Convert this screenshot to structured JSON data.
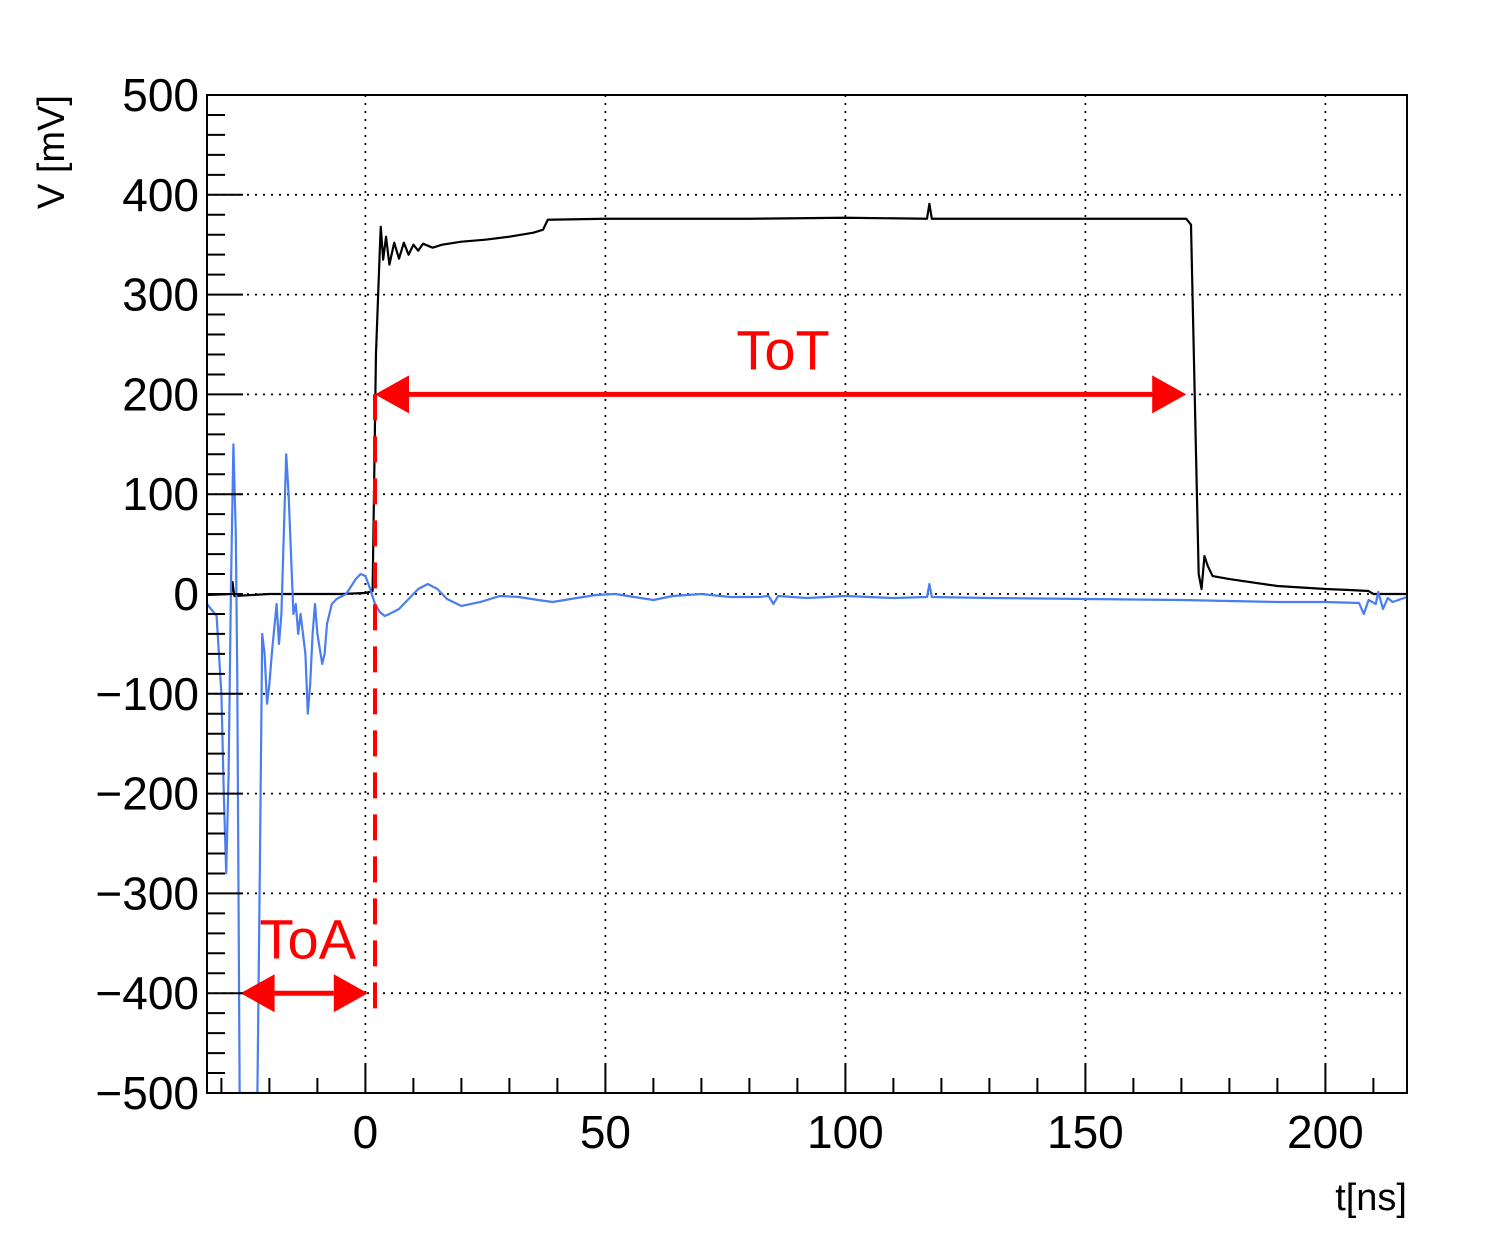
{
  "chart_data": {
    "type": "line",
    "xlabel": "t[ns]",
    "ylabel": "V [mV]",
    "xlim": [
      -33,
      217
    ],
    "ylim": [
      -500,
      500
    ],
    "x_ticks": [
      0,
      50,
      100,
      150,
      200
    ],
    "x_tick_labels": [
      "0",
      "50",
      "100",
      "150",
      "200"
    ],
    "y_ticks": [
      -500,
      -400,
      -300,
      -200,
      -100,
      0,
      100,
      200,
      300,
      400,
      500
    ],
    "y_tick_labels": [
      "−500",
      "−400",
      "−300",
      "−200",
      "−100",
      "0",
      "100",
      "200",
      "300",
      "400",
      "500"
    ],
    "grid": true,
    "series": [
      {
        "color": "#000000",
        "points": [
          [
            -33,
            -1
          ],
          [
            -28,
            0
          ],
          [
            -27.7,
            12
          ],
          [
            -27.3,
            -2
          ],
          [
            -20,
            0
          ],
          [
            -10,
            0
          ],
          [
            -5,
            0
          ],
          [
            0,
            1
          ],
          [
            1.5,
            3
          ],
          [
            2.2,
            240
          ],
          [
            3.0,
            345
          ],
          [
            3.2,
            368
          ],
          [
            3.7,
            335
          ],
          [
            4.3,
            358
          ],
          [
            5,
            330
          ],
          [
            6,
            352
          ],
          [
            7,
            336
          ],
          [
            8,
            352
          ],
          [
            9,
            340
          ],
          [
            10,
            350
          ],
          [
            11,
            344
          ],
          [
            12,
            351
          ],
          [
            14,
            347
          ],
          [
            16,
            350
          ],
          [
            20,
            353
          ],
          [
            25,
            355
          ],
          [
            30,
            358
          ],
          [
            35,
            362
          ],
          [
            37,
            365
          ],
          [
            38,
            375
          ],
          [
            50,
            376
          ],
          [
            80,
            376
          ],
          [
            100,
            377
          ],
          [
            117,
            376
          ],
          [
            117.5,
            391
          ],
          [
            118,
            376
          ],
          [
            140,
            376
          ],
          [
            171,
            376
          ],
          [
            172,
            370
          ],
          [
            173,
            150
          ],
          [
            173.6,
            20
          ],
          [
            174.2,
            5
          ],
          [
            174.8,
            38
          ],
          [
            175.5,
            28
          ],
          [
            176.5,
            18
          ],
          [
            180,
            15
          ],
          [
            190,
            8
          ],
          [
            200,
            5
          ],
          [
            205,
            4
          ],
          [
            209,
            3
          ],
          [
            210,
            0
          ],
          [
            217,
            0
          ]
        ]
      },
      {
        "color": "#4a7ef0",
        "points": [
          [
            -33,
            -10
          ],
          [
            -31,
            -22
          ],
          [
            -30,
            -100
          ],
          [
            -29.5,
            -200
          ],
          [
            -29,
            -280
          ],
          [
            -28.5,
            -180
          ],
          [
            -28,
            10
          ],
          [
            -27.5,
            150
          ],
          [
            -27,
            60
          ],
          [
            -26.7,
            -80
          ],
          [
            -26.2,
            -500
          ],
          [
            -22.5,
            -500
          ],
          [
            -22,
            -280
          ],
          [
            -21.5,
            -40
          ],
          [
            -21,
            -60
          ],
          [
            -20.5,
            -110
          ],
          [
            -20,
            -90
          ],
          [
            -19.5,
            -60
          ],
          [
            -18.5,
            -10
          ],
          [
            -18,
            -50
          ],
          [
            -17.5,
            -20
          ],
          [
            -17,
            60
          ],
          [
            -16.5,
            140
          ],
          [
            -16,
            100
          ],
          [
            -15.5,
            40
          ],
          [
            -15,
            -20
          ],
          [
            -14.5,
            -10
          ],
          [
            -14,
            -40
          ],
          [
            -13.5,
            -20
          ],
          [
            -12.5,
            -60
          ],
          [
            -12,
            -120
          ],
          [
            -11.5,
            -90
          ],
          [
            -11,
            -40
          ],
          [
            -10.5,
            -10
          ],
          [
            -10,
            -40
          ],
          [
            -9.5,
            -55
          ],
          [
            -9,
            -70
          ],
          [
            -8.5,
            -60
          ],
          [
            -8,
            -30
          ],
          [
            -7,
            -10
          ],
          [
            -6,
            -5
          ],
          [
            -4,
            0
          ],
          [
            -2,
            15
          ],
          [
            -1,
            20
          ],
          [
            0,
            18
          ],
          [
            1,
            5
          ],
          [
            2,
            -10
          ],
          [
            3,
            -18
          ],
          [
            4,
            -22
          ],
          [
            5,
            -20
          ],
          [
            7,
            -15
          ],
          [
            9,
            -5
          ],
          [
            11,
            5
          ],
          [
            13,
            10
          ],
          [
            15,
            5
          ],
          [
            17,
            -5
          ],
          [
            20,
            -12
          ],
          [
            24,
            -8
          ],
          [
            28,
            -2
          ],
          [
            32,
            -3
          ],
          [
            36,
            -6
          ],
          [
            39,
            -8
          ],
          [
            44,
            -4
          ],
          [
            48,
            -1
          ],
          [
            52,
            0
          ],
          [
            56,
            -3
          ],
          [
            60,
            -6
          ],
          [
            64,
            -2
          ],
          [
            70,
            0
          ],
          [
            76,
            -3
          ],
          [
            82,
            -3
          ],
          [
            84,
            -2
          ],
          [
            85,
            -10
          ],
          [
            86,
            -2
          ],
          [
            92,
            -4
          ],
          [
            100,
            -2
          ],
          [
            110,
            -4
          ],
          [
            117,
            -3
          ],
          [
            117.5,
            10
          ],
          [
            118,
            -3
          ],
          [
            130,
            -4
          ],
          [
            150,
            -5
          ],
          [
            170,
            -6
          ],
          [
            180,
            -7
          ],
          [
            190,
            -8
          ],
          [
            200,
            -8
          ],
          [
            207,
            -9
          ],
          [
            208,
            -20
          ],
          [
            209,
            -6
          ],
          [
            210.5,
            -10
          ],
          [
            211,
            2
          ],
          [
            212,
            -15
          ],
          [
            213,
            -4
          ],
          [
            214,
            -8
          ],
          [
            217,
            -3
          ]
        ]
      }
    ],
    "annotations": [
      {
        "text": "ToT",
        "color": "#ff0000",
        "arrow_from": [
          2,
          200
        ],
        "arrow_to": [
          171,
          200
        ],
        "label_pos": [
          87,
          225
        ]
      },
      {
        "text": "ToA",
        "color": "#ff0000",
        "arrow_from": [
          -26,
          -400
        ],
        "arrow_to": [
          0.5,
          -400
        ],
        "label_pos": [
          -12,
          -365
        ]
      }
    ],
    "vline": {
      "x": 2,
      "from": -420,
      "to": 200,
      "color": "#ff0000",
      "style": "dashed"
    }
  }
}
